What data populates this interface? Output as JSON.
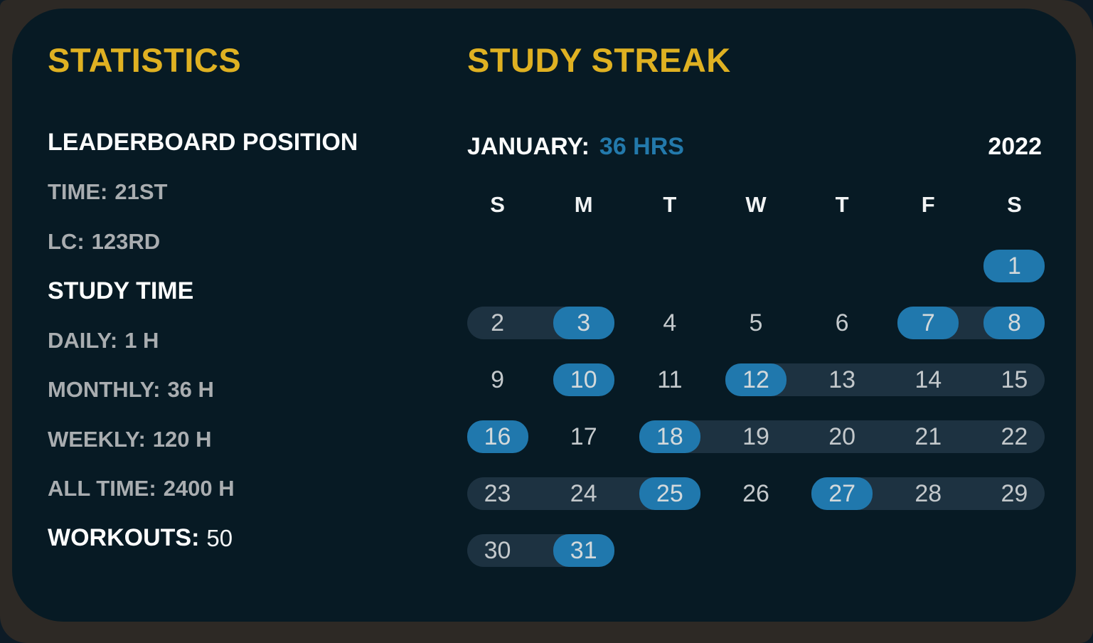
{
  "colors": {
    "page_background": "#0d1b26",
    "frame_background": "#2d2925",
    "card_background": "#071a24",
    "accent_yellow": "#dfb122",
    "accent_blue": "#2078ad",
    "streak_pill": "#1d3241",
    "text_white": "#fbfcfc",
    "text_muted": "#a9adb0",
    "day_number": "#c3c8cb"
  },
  "statistics": {
    "title": "STATISTICS",
    "lines": [
      {
        "style": "heading",
        "label": "LEADERBOARD POSITION",
        "value": ""
      },
      {
        "style": "muted",
        "label": "TIME:",
        "value": "21ST"
      },
      {
        "style": "muted",
        "label": "LC:",
        "value": "123RD"
      },
      {
        "style": "heading",
        "label": "STUDY TIME",
        "value": ""
      },
      {
        "style": "muted",
        "label": "DAILY:",
        "value": "1 H"
      },
      {
        "style": "muted",
        "label": "MONTHLY:",
        "value": "36 H"
      },
      {
        "style": "muted",
        "label": "WEEKLY:",
        "value": "120 H"
      },
      {
        "style": "muted",
        "label": "ALL TIME:",
        "value": "2400 H"
      },
      {
        "style": "workouts",
        "label": "WORKOUTS:",
        "value": "50"
      }
    ]
  },
  "streak": {
    "title": "STUDY STREAK",
    "month_label": "JANUARY:",
    "hours_label": "36 HRS",
    "year": "2022",
    "day_headers": [
      "S",
      "M",
      "T",
      "W",
      "T",
      "F",
      "S"
    ],
    "calendar": {
      "month": "January",
      "first_day_column": 6,
      "days_in_month": 31,
      "highlighted_days": [
        1,
        3,
        7,
        8,
        10,
        12,
        16,
        18,
        25,
        27,
        31
      ],
      "streak_ranges": [
        [
          2,
          3
        ],
        [
          7,
          8
        ],
        [
          12,
          15
        ],
        [
          18,
          22
        ],
        [
          23,
          25
        ],
        [
          27,
          29
        ],
        [
          30,
          31
        ]
      ]
    }
  }
}
